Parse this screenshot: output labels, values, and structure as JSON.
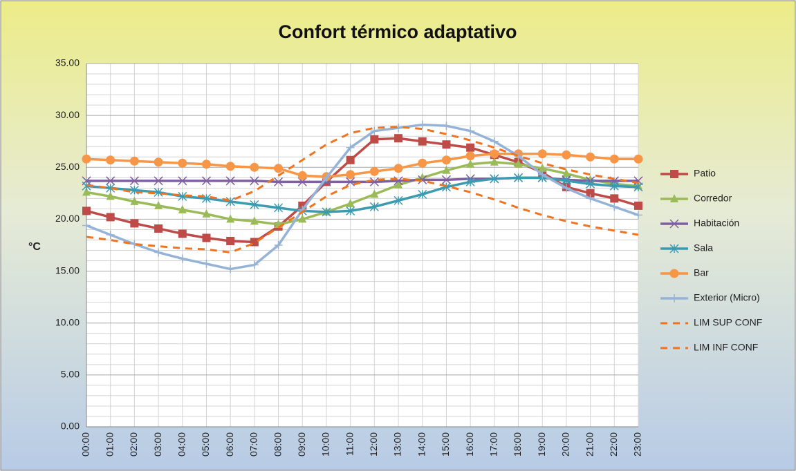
{
  "chart_data": {
    "type": "line",
    "title": "Confort  térmico adaptativo",
    "ylabel": "°C",
    "categories": [
      "00:00",
      "01:00",
      "02:00",
      "03:00",
      "04:00",
      "05:00",
      "06:00",
      "07:00",
      "08:00",
      "09:00",
      "10:00",
      "11:00",
      "12:00",
      "13:00",
      "14:00",
      "15:00",
      "16:00",
      "17:00",
      "18:00",
      "19:00",
      "20:00",
      "21:00",
      "22:00",
      "23:00"
    ],
    "ylim": [
      0,
      35
    ],
    "yticks": [
      {
        "value": 0,
        "label": "0.00"
      },
      {
        "value": 5,
        "label": "5.00"
      },
      {
        "value": 10,
        "label": "10.00"
      },
      {
        "value": 15,
        "label": "15.00"
      },
      {
        "value": 20,
        "label": "20.00"
      },
      {
        "value": 25,
        "label": "25.00"
      },
      {
        "value": 30,
        "label": "30.00"
      },
      {
        "value": 35,
        "label": "35.00"
      }
    ],
    "yminorticks": [
      1,
      2,
      3,
      4,
      6,
      7,
      8,
      9,
      11,
      12,
      13,
      14,
      16,
      17,
      18,
      19,
      21,
      22,
      23,
      24,
      26,
      27,
      28,
      29,
      31,
      32,
      33,
      34
    ],
    "grid": true,
    "legend": "right",
    "series": [
      {
        "name": "Patio",
        "color": "#be4b48",
        "marker": "square",
        "values": [
          20.8,
          20.2,
          19.6,
          19.1,
          18.6,
          18.2,
          17.9,
          17.8,
          19.3,
          21.3,
          23.6,
          25.7,
          27.7,
          27.8,
          27.5,
          27.2,
          26.9,
          26.2,
          25.5,
          24.5,
          23.1,
          22.5,
          22.0,
          21.3
        ]
      },
      {
        "name": "Corredor",
        "color": "#9bbb59",
        "marker": "triangle",
        "values": [
          22.6,
          22.2,
          21.7,
          21.3,
          20.9,
          20.5,
          20.0,
          19.8,
          19.5,
          20.0,
          20.7,
          21.5,
          22.4,
          23.3,
          24.0,
          24.7,
          25.3,
          25.5,
          25.3,
          24.9,
          24.4,
          23.8,
          23.4,
          23.2
        ]
      },
      {
        "name": "Habitación",
        "color": "#7f5fa0",
        "marker": "x",
        "values": [
          23.7,
          23.7,
          23.7,
          23.7,
          23.7,
          23.7,
          23.7,
          23.7,
          23.6,
          23.6,
          23.6,
          23.6,
          23.6,
          23.7,
          23.8,
          23.8,
          23.9,
          23.9,
          24.0,
          24.0,
          23.8,
          23.7,
          23.7,
          23.7
        ]
      },
      {
        "name": "Sala",
        "color": "#3b9bb0",
        "marker": "star",
        "values": [
          23.2,
          23.0,
          22.8,
          22.6,
          22.2,
          22.0,
          21.7,
          21.4,
          21.1,
          20.8,
          20.7,
          20.8,
          21.2,
          21.8,
          22.4,
          23.1,
          23.6,
          23.9,
          24.0,
          24.0,
          23.7,
          23.4,
          23.2,
          23.1
        ]
      },
      {
        "name": "Bar",
        "color": "#f79646",
        "marker": "circle",
        "values": [
          25.8,
          25.7,
          25.6,
          25.5,
          25.4,
          25.3,
          25.1,
          25.0,
          24.9,
          24.2,
          24.1,
          24.3,
          24.6,
          24.9,
          25.4,
          25.7,
          26.1,
          26.3,
          26.3,
          26.3,
          26.2,
          26.0,
          25.8,
          25.8
        ]
      },
      {
        "name": "Exterior (Micro)",
        "color": "#95b3d7",
        "marker": "plus",
        "values": [
          19.4,
          18.5,
          17.6,
          16.8,
          16.2,
          15.7,
          15.2,
          15.6,
          17.5,
          20.9,
          24.0,
          26.9,
          28.5,
          28.8,
          29.1,
          29.0,
          28.5,
          27.5,
          26.1,
          24.3,
          23.0,
          22.0,
          21.2,
          20.4
        ]
      },
      {
        "name": "LIM SUP CONF",
        "color": "#f0741f",
        "marker": "none",
        "dash": true,
        "values": [
          23.3,
          23.0,
          22.6,
          22.5,
          22.3,
          22.2,
          21.8,
          22.7,
          24.2,
          25.7,
          27.2,
          28.3,
          28.8,
          28.9,
          28.7,
          28.2,
          27.6,
          26.9,
          26.1,
          25.4,
          24.8,
          24.3,
          23.9,
          23.5
        ]
      },
      {
        "name": "LIM INF CONF",
        "color": "#f0741f",
        "marker": "none",
        "dash": true,
        "values": [
          18.3,
          18.0,
          17.6,
          17.4,
          17.2,
          17.1,
          16.8,
          17.7,
          19.2,
          20.7,
          22.2,
          23.3,
          23.8,
          23.9,
          23.7,
          23.2,
          22.6,
          21.9,
          21.1,
          20.4,
          19.8,
          19.3,
          18.9,
          18.5
        ]
      }
    ]
  }
}
